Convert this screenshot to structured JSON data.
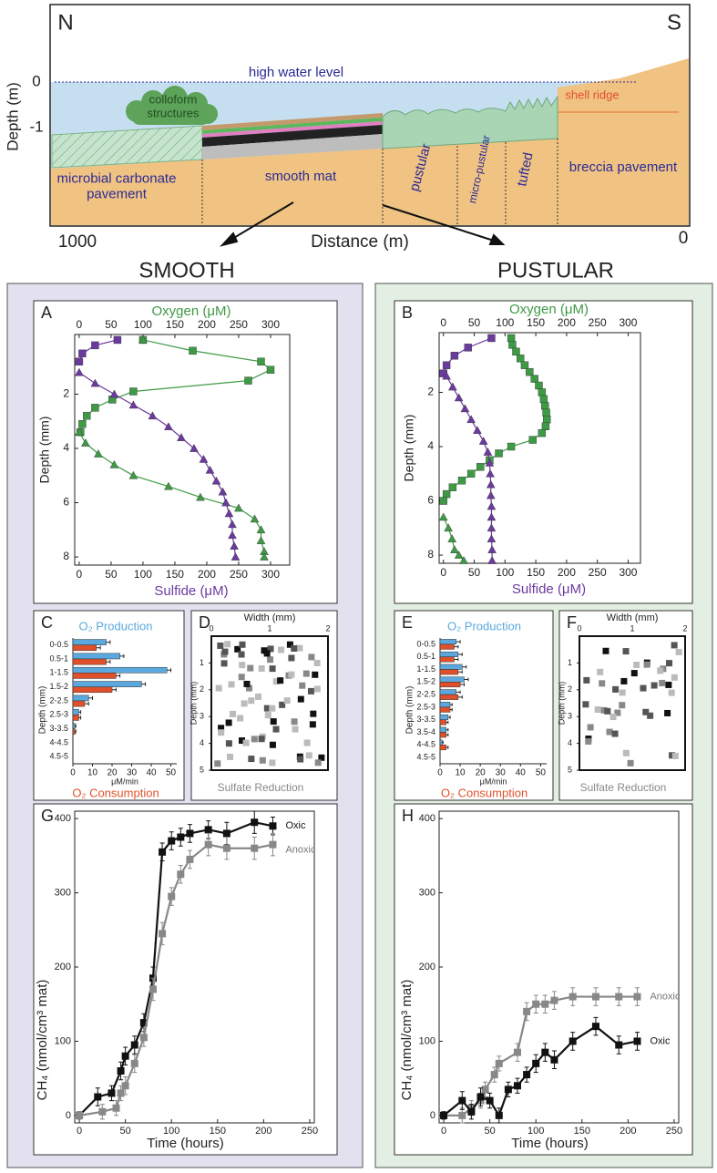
{
  "diagram": {
    "north": "N",
    "south": "S",
    "y_label": "Depth (m)",
    "y_ticks": [
      "0",
      "-1"
    ],
    "water": "high water level",
    "colloform": "colloform structures",
    "shell_ridge": "shell ridge",
    "zones": [
      "microbial carbonate pavement",
      "smooth mat",
      "pustular",
      "micro-pustular",
      "tufted",
      "breccia pavement"
    ],
    "x_label": "Distance (m)",
    "x_ends": [
      "1000",
      "0"
    ],
    "headings": [
      "SMOOTH",
      "PUSTULAR"
    ]
  },
  "chart_data": [
    {
      "type": "profile",
      "label": "A",
      "x2label": "Oxygen (μM)",
      "xlabel": "Sulfide (μM)",
      "ylabel": "Depth (mm)",
      "xlim": [
        -7,
        330
      ],
      "x2lim": [
        -7,
        330
      ],
      "xticks": [
        0,
        50,
        100,
        150,
        200,
        250,
        300
      ],
      "x2ticks": [
        0,
        50,
        100,
        150,
        200,
        250,
        300
      ],
      "ylim": [
        -0.2,
        8.3
      ],
      "yticks": [
        2,
        4,
        6,
        8
      ],
      "series": [
        {
          "axis": "x2",
          "color": "#3f9a45",
          "marker": "square",
          "x": [
            100,
            178,
            285,
            300,
            265,
            85,
            52,
            25,
            12,
            5,
            2
          ],
          "y": [
            0,
            0.4,
            0.8,
            1.1,
            1.5,
            1.9,
            2.2,
            2.5,
            2.8,
            3.1,
            3.4
          ]
        },
        {
          "axis": "x2",
          "color": "#3f9a45",
          "marker": "triangle",
          "x": [
            100,
            null,
            0,
            10,
            30,
            55,
            85,
            140,
            190,
            250,
            275,
            285,
            285,
            290,
            290
          ],
          "y": [
            0,
            null,
            3.4,
            3.8,
            4.2,
            4.6,
            5.0,
            5.4,
            5.8,
            6.2,
            6.6,
            7.0,
            7.4,
            7.8,
            8.0
          ]
        },
        {
          "axis": "x",
          "color": "#6b3a9e",
          "marker": "square",
          "x": [
            60,
            25,
            5,
            0
          ],
          "y": [
            0,
            0.2,
            0.5,
            0.8
          ]
        },
        {
          "axis": "x",
          "color": "#6b3a9e",
          "marker": "triangle",
          "x": [
            0,
            25,
            55,
            85,
            115,
            140,
            160,
            180,
            195,
            205,
            215,
            225,
            230,
            235,
            240,
            240,
            243,
            245
          ],
          "y": [
            1.2,
            1.6,
            2.0,
            2.4,
            2.8,
            3.2,
            3.6,
            4.0,
            4.4,
            4.8,
            5.2,
            5.6,
            6.0,
            6.4,
            6.8,
            7.2,
            7.6,
            8.0
          ]
        }
      ]
    },
    {
      "type": "profile",
      "label": "B",
      "x2label": "Oxygen (μM)",
      "xlabel": "Sulfide (μM)",
      "ylabel": "Depth (mm)",
      "xlim": [
        -7,
        320
      ],
      "x2lim": [
        -7,
        320
      ],
      "xticks": [
        0,
        50,
        100,
        150,
        200,
        250,
        300
      ],
      "x2ticks": [
        0,
        50,
        100,
        150,
        200,
        250,
        300
      ],
      "ylim": [
        -0.2,
        8.3
      ],
      "yticks": [
        2,
        4,
        6,
        8
      ],
      "series": [
        {
          "axis": "x2",
          "color": "#3f9a45",
          "marker": "square",
          "x": [
            110,
            112,
            118,
            125,
            132,
            140,
            148,
            155,
            160,
            163,
            165,
            167,
            168,
            166,
            160,
            145,
            110,
            90,
            75,
            60,
            45,
            30,
            15,
            5,
            0
          ],
          "y": [
            0,
            0.25,
            0.5,
            0.75,
            1.0,
            1.25,
            1.5,
            1.75,
            2.0,
            2.25,
            2.5,
            2.75,
            3.0,
            3.25,
            3.5,
            3.75,
            4.0,
            4.25,
            4.5,
            4.75,
            5.0,
            5.25,
            5.5,
            5.75,
            6.0
          ]
        },
        {
          "axis": "x2",
          "color": "#3f9a45",
          "marker": "triangle",
          "x": [
            0,
            8,
            14,
            18,
            25,
            33
          ],
          "y": [
            6.6,
            7.0,
            7.4,
            7.8,
            8.0,
            8.2
          ]
        },
        {
          "axis": "x",
          "color": "#6b3a9e",
          "marker": "square",
          "x": [
            78,
            40,
            18,
            5,
            0
          ],
          "y": [
            0,
            0.35,
            0.65,
            1.0,
            1.3
          ]
        },
        {
          "axis": "x",
          "color": "#6b3a9e",
          "marker": "triangle",
          "x": [
            5,
            15,
            25,
            35,
            45,
            55,
            65,
            72,
            75,
            76,
            77,
            77,
            78,
            78,
            78,
            78,
            79,
            79
          ],
          "y": [
            1.4,
            1.8,
            2.2,
            2.6,
            3.0,
            3.4,
            3.8,
            4.2,
            4.6,
            5.0,
            5.4,
            5.8,
            6.2,
            6.6,
            7.0,
            7.4,
            7.8,
            8.2
          ]
        }
      ]
    },
    {
      "type": "hbar",
      "label": "C",
      "xlabel": "μM/min",
      "ylabel": "Depth (mm)",
      "xlim": [
        0,
        53
      ],
      "xticks": [
        0,
        10,
        20,
        30,
        40,
        50
      ],
      "categories": [
        "0-0.5",
        "0.5-1",
        "1-1.5",
        "1.5-2",
        "2-2.5",
        "2.5-3",
        "3-3.5",
        "4-4.5",
        "4.5-5"
      ],
      "series": [
        {
          "name": "O₂ Production",
          "color": "#5aa8dd",
          "values": [
            17,
            24,
            48,
            35,
            8,
            3,
            1,
            0,
            0
          ],
          "errors": [
            2,
            2,
            2,
            2,
            2,
            1,
            0.5,
            0,
            0
          ]
        },
        {
          "name": "O₂ Consumption",
          "color": "#e0502a",
          "values": [
            12,
            17,
            22,
            20,
            6,
            3,
            1,
            0,
            0
          ],
          "errors": [
            2,
            2,
            2,
            2,
            2,
            1,
            0.5,
            0,
            0
          ]
        }
      ]
    },
    {
      "type": "image",
      "label": "D",
      "title": "Sulfate Reduction",
      "xlabel": "Width (mm)",
      "ylabel": "Depth (mm)",
      "xlim": [
        0,
        2
      ],
      "xticks": [
        0,
        1,
        2
      ],
      "ylim": [
        0,
        5
      ],
      "yticks": [
        1,
        2,
        3,
        4,
        5
      ]
    },
    {
      "type": "hbar",
      "label": "E",
      "xlabel": "μM/min",
      "ylabel": "Depth (mm)",
      "xlim": [
        0,
        53
      ],
      "xticks": [
        0,
        10,
        20,
        30,
        40,
        50
      ],
      "categories": [
        "0-0.5",
        "0.5-1",
        "1-1.5",
        "1.5-2",
        "2-2.5",
        "2.5-3",
        "3-3.5",
        "3.5-4",
        "4-4.5",
        "4.5-5"
      ],
      "series": [
        {
          "name": "O₂ Production",
          "color": "#5aa8dd",
          "values": [
            8,
            9,
            11,
            12,
            8,
            5,
            4,
            3,
            1,
            0
          ],
          "errors": [
            2,
            2,
            2,
            2,
            2,
            1,
            1,
            1,
            0.5,
            0
          ]
        },
        {
          "name": "O₂ Consumption",
          "color": "#e0502a",
          "values": [
            7,
            7,
            9,
            10,
            9,
            5,
            3,
            3,
            3,
            0
          ],
          "errors": [
            2,
            2,
            2,
            2,
            2,
            1,
            1,
            1,
            1,
            0
          ]
        }
      ]
    },
    {
      "type": "image",
      "label": "F",
      "title": "Sulfate Reduction",
      "xlabel": "Width (mm)",
      "ylabel": "Depth (mm)",
      "xlim": [
        0,
        2
      ],
      "xticks": [
        0,
        1,
        2
      ],
      "ylim": [
        0,
        5
      ],
      "yticks": [
        1,
        2,
        3,
        4,
        5
      ]
    },
    {
      "type": "line",
      "label": "G",
      "xlabel": "Time (hours)",
      "ylabel": "CH₄ (nmol/cm³ mat)",
      "xlim": [
        -5,
        255
      ],
      "xticks": [
        0,
        50,
        100,
        150,
        200,
        250
      ],
      "ylim": [
        -10,
        410
      ],
      "yticks": [
        0,
        100,
        200,
        300,
        400
      ],
      "series": [
        {
          "name": "Oxic",
          "color": "#111111",
          "x": [
            0,
            20,
            35,
            45,
            50,
            60,
            70,
            80,
            90,
            100,
            110,
            120,
            140,
            160,
            190,
            210
          ],
          "values": [
            0,
            25,
            30,
            60,
            80,
            95,
            125,
            185,
            355,
            370,
            375,
            380,
            385,
            380,
            395,
            390
          ],
          "errors": [
            5,
            12,
            10,
            12,
            12,
            12,
            12,
            15,
            12,
            12,
            12,
            12,
            12,
            15,
            15,
            12
          ]
        },
        {
          "name": "Anoxic",
          "color": "#888888",
          "x": [
            0,
            25,
            40,
            45,
            50,
            60,
            70,
            80,
            90,
            100,
            110,
            120,
            140,
            160,
            190,
            210
          ],
          "values": [
            0,
            5,
            10,
            30,
            40,
            70,
            105,
            170,
            245,
            295,
            325,
            345,
            365,
            360,
            360,
            365
          ],
          "errors": [
            5,
            10,
            10,
            10,
            12,
            12,
            12,
            15,
            15,
            12,
            12,
            12,
            15,
            15,
            15,
            15
          ]
        }
      ]
    },
    {
      "type": "line",
      "label": "H",
      "xlabel": "Time (hours)",
      "ylabel": "CH₄ (nmol/cm³ mat)",
      "xlim": [
        -5,
        255
      ],
      "xticks": [
        0,
        50,
        100,
        150,
        200,
        250
      ],
      "ylim": [
        -10,
        410
      ],
      "yticks": [
        0,
        100,
        200,
        300,
        400
      ],
      "series": [
        {
          "name": "Anoxic",
          "color": "#888888",
          "x": [
            0,
            20,
            30,
            40,
            45,
            55,
            60,
            80,
            90,
            100,
            110,
            120,
            140,
            165,
            190,
            210
          ],
          "values": [
            0,
            0,
            10,
            20,
            35,
            55,
            70,
            85,
            140,
            150,
            150,
            155,
            160,
            160,
            160,
            160
          ],
          "errors": [
            5,
            10,
            10,
            10,
            10,
            10,
            10,
            12,
            12,
            12,
            12,
            12,
            12,
            12,
            12,
            12
          ]
        },
        {
          "name": "Oxic",
          "color": "#111111",
          "x": [
            0,
            20,
            30,
            40,
            50,
            60,
            70,
            80,
            90,
            100,
            110,
            120,
            140,
            165,
            190,
            210
          ],
          "values": [
            0,
            20,
            5,
            25,
            20,
            0,
            35,
            40,
            55,
            70,
            85,
            75,
            100,
            120,
            95,
            100
          ],
          "errors": [
            5,
            12,
            10,
            12,
            10,
            10,
            10,
            10,
            10,
            12,
            12,
            12,
            12,
            12,
            12,
            12
          ]
        }
      ]
    }
  ]
}
